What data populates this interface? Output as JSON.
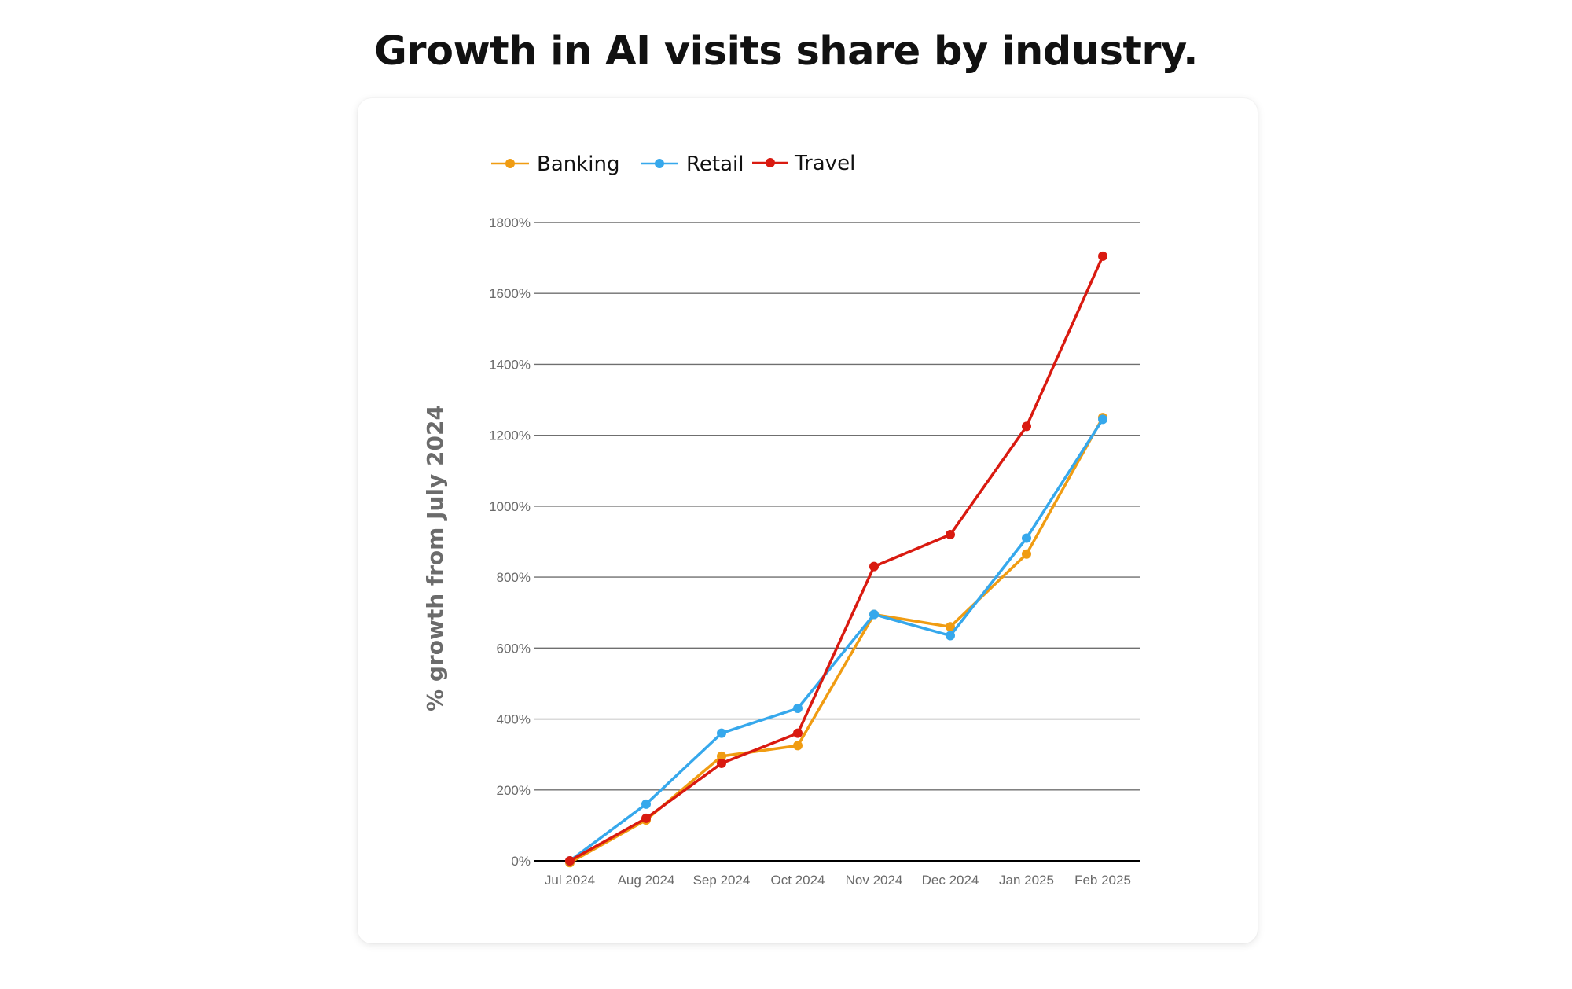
{
  "page": {
    "title": "Growth in AI visits share by industry."
  },
  "chart_data": {
    "type": "line",
    "title": "Growth in AI visits share by industry.",
    "xlabel": "",
    "ylabel": "% growth from July 2024",
    "categories": [
      "Jul 2024",
      "Aug 2024",
      "Sep 2024",
      "Oct 2024",
      "Nov 2024",
      "Dec 2024",
      "Jan 2025",
      "Feb 2025"
    ],
    "y_ticks": [
      "0%",
      "200%",
      "400%",
      "600%",
      "800%",
      "1000%",
      "1200%",
      "1400%",
      "1600%",
      "1800%"
    ],
    "ylim": [
      0,
      1800
    ],
    "grid": true,
    "legend_position": "top-left",
    "series": [
      {
        "name": "Banking",
        "color": "#f09c12",
        "values": [
          -5,
          115,
          295,
          325,
          695,
          660,
          865,
          1250
        ]
      },
      {
        "name": "Retail",
        "color": "#36a8ec",
        "values": [
          0,
          160,
          360,
          430,
          695,
          635,
          910,
          1245
        ]
      },
      {
        "name": "Travel",
        "color": "#d91a10",
        "values": [
          0,
          120,
          275,
          360,
          830,
          920,
          1225,
          1705
        ]
      }
    ]
  }
}
